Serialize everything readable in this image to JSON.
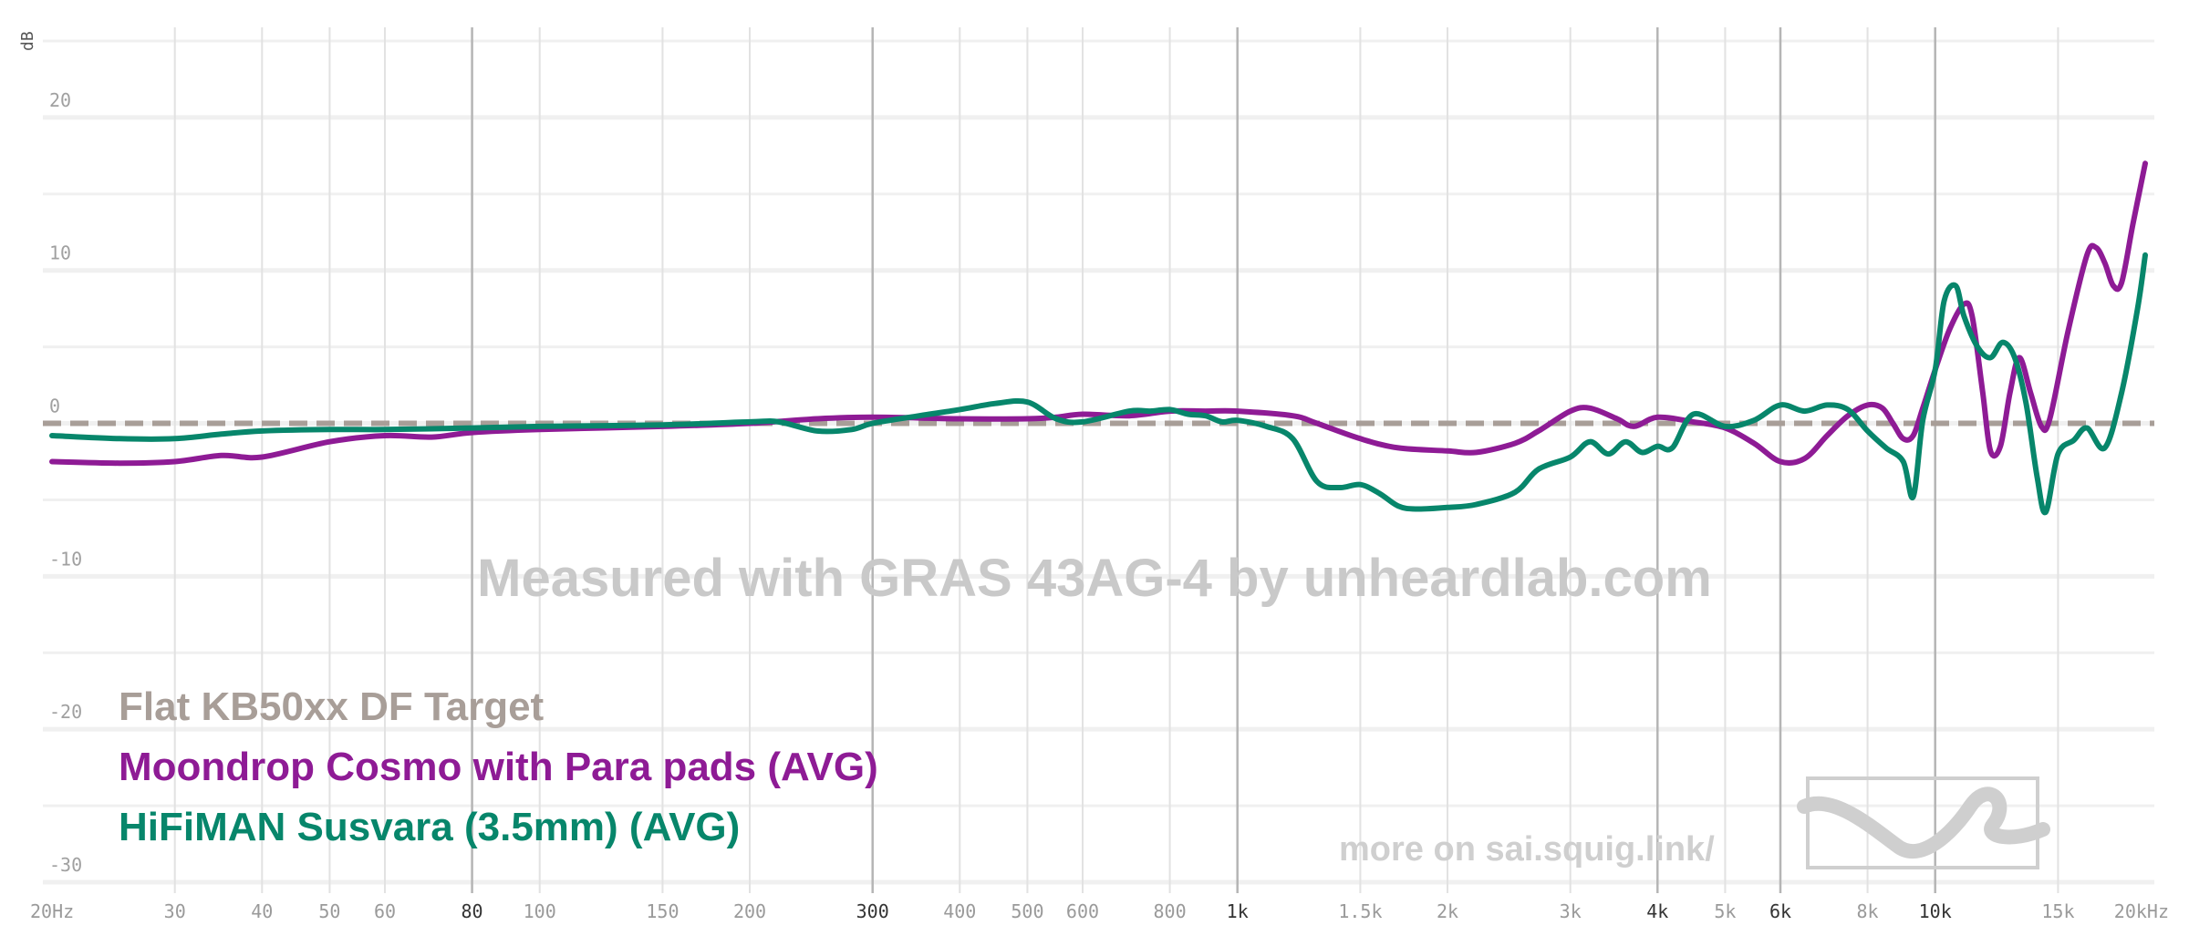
{
  "chart_data": {
    "type": "line",
    "x_scale": "log",
    "xlim": [
      20,
      20000
    ],
    "ylim": [
      -30,
      25
    ],
    "grid": true,
    "legend_position": "bottom-left",
    "y_unit_label": "dB",
    "y_ticks": [
      {
        "value": 20,
        "label": "20"
      },
      {
        "value": 10,
        "label": "10"
      },
      {
        "value": 0,
        "label": "0"
      },
      {
        "value": -10,
        "label": "-10"
      },
      {
        "value": -20,
        "label": "-20"
      },
      {
        "value": -30,
        "label": "-30"
      }
    ],
    "x_ticks": [
      {
        "value": 20,
        "label": "20Hz",
        "major": false
      },
      {
        "value": 30,
        "label": "30",
        "major": false
      },
      {
        "value": 40,
        "label": "40",
        "major": false
      },
      {
        "value": 50,
        "label": "50",
        "major": false
      },
      {
        "value": 60,
        "label": "60",
        "major": false
      },
      {
        "value": 80,
        "label": "80",
        "major": true
      },
      {
        "value": 100,
        "label": "100",
        "major": false
      },
      {
        "value": 150,
        "label": "150",
        "major": false
      },
      {
        "value": 200,
        "label": "200",
        "major": false
      },
      {
        "value": 300,
        "label": "300",
        "major": true
      },
      {
        "value": 400,
        "label": "400",
        "major": false
      },
      {
        "value": 500,
        "label": "500",
        "major": false
      },
      {
        "value": 600,
        "label": "600",
        "major": false
      },
      {
        "value": 800,
        "label": "800",
        "major": false
      },
      {
        "value": 1000,
        "label": "1k",
        "major": true
      },
      {
        "value": 1500,
        "label": "1.5k",
        "major": false
      },
      {
        "value": 2000,
        "label": "2k",
        "major": false
      },
      {
        "value": 3000,
        "label": "3k",
        "major": false
      },
      {
        "value": 4000,
        "label": "4k",
        "major": true
      },
      {
        "value": 5000,
        "label": "5k",
        "major": false
      },
      {
        "value": 6000,
        "label": "6k",
        "major": true
      },
      {
        "value": 8000,
        "label": "8k",
        "major": false
      },
      {
        "value": 10000,
        "label": "10k",
        "major": true
      },
      {
        "value": 15000,
        "label": "15k",
        "major": false
      },
      {
        "value": 20000,
        "label": "20kHz",
        "major": false
      }
    ],
    "series": [
      {
        "name": "Flat KB50xx DF Target",
        "color": "#a89e98",
        "dashed": true,
        "points": [
          [
            20,
            0
          ],
          [
            20000,
            0
          ]
        ]
      },
      {
        "name": "Moondrop Cosmo with Para pads (AVG)",
        "color": "#8e1b95",
        "dashed": false,
        "points": [
          [
            20,
            -2.5
          ],
          [
            25,
            -2.6
          ],
          [
            30,
            -2.5
          ],
          [
            35,
            -2.1
          ],
          [
            40,
            -2.2
          ],
          [
            50,
            -1.2
          ],
          [
            60,
            -0.8
          ],
          [
            70,
            -0.9
          ],
          [
            80,
            -0.6
          ],
          [
            100,
            -0.4
          ],
          [
            150,
            -0.2
          ],
          [
            200,
            0
          ],
          [
            250,
            0.3
          ],
          [
            300,
            0.4
          ],
          [
            400,
            0.3
          ],
          [
            500,
            0.3
          ],
          [
            550,
            0.4
          ],
          [
            600,
            0.6
          ],
          [
            700,
            0.5
          ],
          [
            800,
            0.8
          ],
          [
            900,
            0.8
          ],
          [
            1000,
            0.8
          ],
          [
            1200,
            0.5
          ],
          [
            1300,
            0
          ],
          [
            1500,
            -1
          ],
          [
            1700,
            -1.6
          ],
          [
            2000,
            -1.8
          ],
          [
            2200,
            -1.9
          ],
          [
            2500,
            -1.3
          ],
          [
            2700,
            -0.5
          ],
          [
            3000,
            0.8
          ],
          [
            3200,
            1
          ],
          [
            3500,
            0.3
          ],
          [
            3700,
            -0.2
          ],
          [
            4000,
            0.4
          ],
          [
            4500,
            0.1
          ],
          [
            5000,
            -0.3
          ],
          [
            5500,
            -1.3
          ],
          [
            6000,
            -2.5
          ],
          [
            6500,
            -2.3
          ],
          [
            7000,
            -0.8
          ],
          [
            7500,
            0.5
          ],
          [
            8000,
            1.2
          ],
          [
            8400,
            1
          ],
          [
            8700,
            0
          ],
          [
            9000,
            -1
          ],
          [
            9300,
            -0.8
          ],
          [
            9600,
            1
          ],
          [
            10000,
            3.5
          ],
          [
            10500,
            6.2
          ],
          [
            11000,
            7.8
          ],
          [
            11300,
            7
          ],
          [
            11700,
            2
          ],
          [
            12000,
            -1.8
          ],
          [
            12400,
            -1.5
          ],
          [
            12800,
            2
          ],
          [
            13200,
            4.3
          ],
          [
            13700,
            2
          ],
          [
            14200,
            -0.2
          ],
          [
            14600,
            0.3
          ],
          [
            15500,
            6
          ],
          [
            16500,
            11
          ],
          [
            17000,
            11.5
          ],
          [
            17500,
            10.5
          ],
          [
            18000,
            9
          ],
          [
            18500,
            9.2
          ],
          [
            19200,
            13
          ],
          [
            20000,
            17
          ]
        ]
      },
      {
        "name": "HiFiMAN Susvara (3.5mm) (AVG)",
        "color": "#07866b",
        "dashed": false,
        "points": [
          [
            20,
            -0.8
          ],
          [
            25,
            -1
          ],
          [
            30,
            -1
          ],
          [
            35,
            -0.7
          ],
          [
            40,
            -0.5
          ],
          [
            50,
            -0.4
          ],
          [
            60,
            -0.4
          ],
          [
            80,
            -0.3
          ],
          [
            100,
            -0.2
          ],
          [
            150,
            -0.1
          ],
          [
            200,
            0.1
          ],
          [
            220,
            0.1
          ],
          [
            250,
            -0.5
          ],
          [
            280,
            -0.4
          ],
          [
            300,
            0
          ],
          [
            350,
            0.5
          ],
          [
            400,
            0.9
          ],
          [
            450,
            1.3
          ],
          [
            500,
            1.4
          ],
          [
            550,
            0.3
          ],
          [
            600,
            0.1
          ],
          [
            700,
            0.8
          ],
          [
            750,
            0.8
          ],
          [
            800,
            0.9
          ],
          [
            850,
            0.6
          ],
          [
            900,
            0.5
          ],
          [
            950,
            0.1
          ],
          [
            1000,
            0.2
          ],
          [
            1100,
            -0.2
          ],
          [
            1200,
            -1
          ],
          [
            1300,
            -3.8
          ],
          [
            1400,
            -4.2
          ],
          [
            1500,
            -4
          ],
          [
            1600,
            -4.6
          ],
          [
            1700,
            -5.4
          ],
          [
            1800,
            -5.6
          ],
          [
            2000,
            -5.5
          ],
          [
            2200,
            -5.3
          ],
          [
            2500,
            -4.5
          ],
          [
            2700,
            -3
          ],
          [
            3000,
            -2.2
          ],
          [
            3200,
            -1.2
          ],
          [
            3400,
            -2
          ],
          [
            3600,
            -1.2
          ],
          [
            3800,
            -1.9
          ],
          [
            4000,
            -1.5
          ],
          [
            4200,
            -1.6
          ],
          [
            4500,
            0.6
          ],
          [
            5000,
            -0.2
          ],
          [
            5500,
            0.2
          ],
          [
            6000,
            1.2
          ],
          [
            6500,
            0.8
          ],
          [
            7000,
            1.2
          ],
          [
            7500,
            0.9
          ],
          [
            8000,
            -0.5
          ],
          [
            8500,
            -1.6
          ],
          [
            9000,
            -2.5
          ],
          [
            9300,
            -4.8
          ],
          [
            9600,
            0.2
          ],
          [
            10000,
            3.5
          ],
          [
            10300,
            8
          ],
          [
            10700,
            9
          ],
          [
            11000,
            7
          ],
          [
            11500,
            5
          ],
          [
            12000,
            4.3
          ],
          [
            12500,
            5.3
          ],
          [
            13000,
            4.3
          ],
          [
            13500,
            1.3
          ],
          [
            14000,
            -3.5
          ],
          [
            14400,
            -5.8
          ],
          [
            15000,
            -2
          ],
          [
            15800,
            -1.1
          ],
          [
            16500,
            -0.3
          ],
          [
            17500,
            -1.6
          ],
          [
            18500,
            2
          ],
          [
            19500,
            7.5
          ],
          [
            20000,
            11
          ]
        ]
      }
    ]
  },
  "watermark": "Measured with GRAS 43AG-4 by unheardlab.com",
  "link_text": "more on sai.squig.link/",
  "logo_icon": "squiglink-logo-icon"
}
